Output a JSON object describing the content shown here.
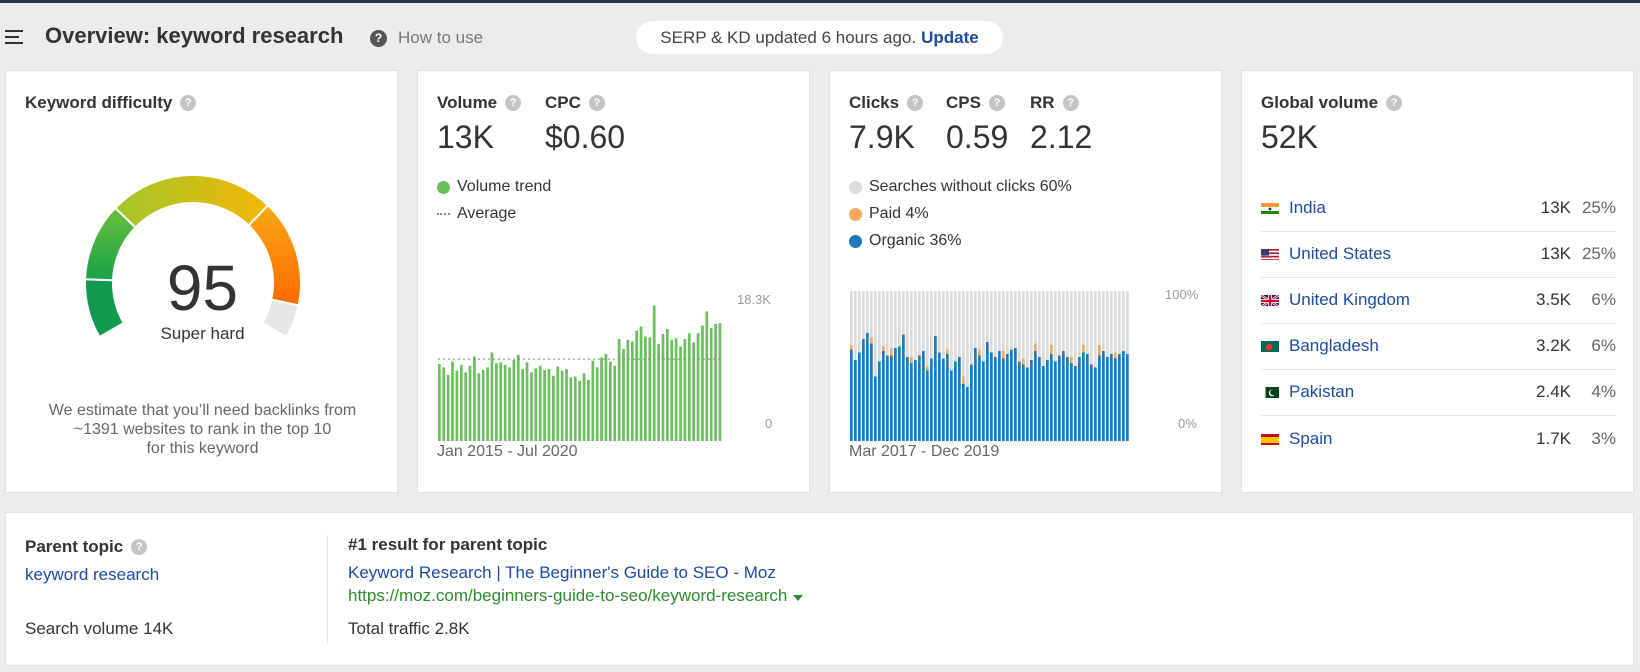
{
  "header": {
    "title": "Overview: keyword research",
    "how_to_use": "How to use",
    "update_text": "SERP & KD updated 6 hours ago.",
    "update_link": "Update",
    "help_glyph": "?"
  },
  "kd": {
    "label": "Keyword difficulty",
    "value": 95,
    "value_text": "95",
    "rating": "Super hard",
    "desc_line1": "We estimate that you’ll need backlinks from",
    "desc_line2": "~1391 websites to rank in the top 10",
    "desc_line3": "for this keyword"
  },
  "volume": {
    "label": "Volume",
    "value": "13K",
    "cpc_label": "CPC",
    "cpc_value": "$0.60",
    "legend_trend": "Volume trend",
    "legend_average": "Average",
    "y_max_label": "18.3K",
    "y_min_label": "0",
    "range": "Jan 2015 - Jul 2020"
  },
  "clicks": {
    "clicks_label": "Clicks",
    "clicks_value": "7.9K",
    "cps_label": "CPS",
    "cps_value": "0.59",
    "rr_label": "RR",
    "rr_value": "2.12",
    "legend_no_clicks": "Searches without clicks 60%",
    "legend_paid": "Paid 4%",
    "legend_organic": "Organic 36%",
    "y_max_label": "100%",
    "y_min_label": "0%",
    "range": "Mar 2017 - Dec 2019"
  },
  "global": {
    "label": "Global volume",
    "value": "52K",
    "countries": [
      {
        "name": "India",
        "volume": "13K",
        "pct": "25%",
        "flag": "india-flag"
      },
      {
        "name": "United States",
        "volume": "13K",
        "pct": "25%",
        "flag": "us-flag"
      },
      {
        "name": "United Kingdom",
        "volume": "3.5K",
        "pct": "6%",
        "flag": "uk-flag"
      },
      {
        "name": "Bangladesh",
        "volume": "3.2K",
        "pct": "6%",
        "flag": "bangladesh-flag"
      },
      {
        "name": "Pakistan",
        "volume": "2.4K",
        "pct": "4%",
        "flag": "pakistan-flag"
      },
      {
        "name": "Spain",
        "volume": "1.7K",
        "pct": "3%",
        "flag": "spain-flag"
      }
    ]
  },
  "parent": {
    "label": "Parent topic",
    "link": "keyword research",
    "search_volume": "Search volume 14K",
    "result_label": "#1 result for parent topic",
    "result_title": "Keyword Research | The Beginner's Guide to SEO - Moz",
    "result_url": "https://moz.com/beginners-guide-to-seo/keyword-research",
    "total_traffic": "Total traffic 2.8K"
  },
  "colors": {
    "link": "#1d4ba0",
    "volume_bar": "#6cbf5e",
    "no_clicks": "#dcdcdc",
    "paid": "#f5a95b",
    "organic": "#1f7abc",
    "url_green": "#2e8a2e"
  },
  "chart_data": [
    {
      "type": "bar",
      "name": "volume-trend",
      "x_range": [
        "Jan 2015",
        "Jul 2020"
      ],
      "ylim": [
        0,
        18300
      ],
      "average": 9800,
      "values": [
        9200,
        8800,
        7900,
        9500,
        8400,
        9100,
        8200,
        9000,
        10100,
        8100,
        8500,
        8800,
        10600,
        9300,
        9400,
        9100,
        8800,
        9700,
        10300,
        8600,
        9400,
        8200,
        8700,
        9000,
        8500,
        8600,
        7800,
        8900,
        8400,
        8600,
        7600,
        7700,
        7200,
        8100,
        7300,
        9600,
        8800,
        10000,
        10400,
        9500,
        9000,
        12200,
        11000,
        12100,
        11900,
        13200,
        13700,
        12500,
        12400,
        16200,
        11600,
        12800,
        13400,
        12100,
        12300,
        11300,
        12200,
        12900,
        11800,
        12900,
        13800,
        15500,
        13500,
        14000,
        14100
      ]
    },
    {
      "type": "bar",
      "stacked": true,
      "name": "clicks-distribution",
      "x_range": [
        "Mar 2017",
        "Dec 2019"
      ],
      "ylim": [
        0,
        100
      ],
      "series": [
        {
          "name": "Organic",
          "values": [
            61,
            54,
            59,
            68,
            72,
            65,
            43,
            53,
            60,
            57,
            57,
            62,
            63,
            71,
            56,
            52,
            54,
            57,
            60,
            47,
            55,
            70,
            59,
            55,
            58,
            47,
            53,
            56,
            38,
            36,
            51,
            62,
            57,
            53,
            66,
            59,
            56,
            60,
            55,
            58,
            61,
            62,
            53,
            51,
            49,
            54,
            60,
            56,
            50,
            54,
            58,
            53,
            57,
            60,
            56,
            52,
            50,
            56,
            59,
            58,
            51,
            49,
            57,
            60,
            56,
            58,
            55,
            58,
            60,
            58
          ]
        },
        {
          "name": "Paid",
          "values": [
            3,
            0,
            0,
            0,
            0,
            4,
            0,
            0,
            3,
            0,
            5,
            0,
            0,
            0,
            0,
            4,
            0,
            0,
            0,
            3,
            0,
            0,
            0,
            0,
            3,
            0,
            0,
            0,
            5,
            0,
            0,
            0,
            4,
            0,
            0,
            0,
            0,
            0,
            5,
            0,
            0,
            0,
            0,
            4,
            0,
            0,
            5,
            0,
            0,
            0,
            6,
            0,
            0,
            0,
            0,
            4,
            0,
            0,
            5,
            0,
            0,
            0,
            7,
            0,
            0,
            0,
            4,
            0,
            0,
            0
          ]
        },
        {
          "name": "Searches without clicks",
          "values": [
            36,
            46,
            41,
            32,
            28,
            31,
            57,
            47,
            37,
            43,
            38,
            38,
            37,
            29,
            44,
            44,
            46,
            43,
            40,
            50,
            45,
            30,
            41,
            45,
            39,
            53,
            47,
            44,
            57,
            64,
            49,
            38,
            39,
            47,
            34,
            41,
            44,
            40,
            40,
            42,
            39,
            38,
            47,
            45,
            51,
            46,
            35,
            44,
            50,
            46,
            36,
            47,
            43,
            40,
            44,
            44,
            50,
            44,
            36,
            42,
            49,
            51,
            36,
            40,
            44,
            42,
            41,
            42,
            40,
            42
          ]
        }
      ]
    }
  ]
}
